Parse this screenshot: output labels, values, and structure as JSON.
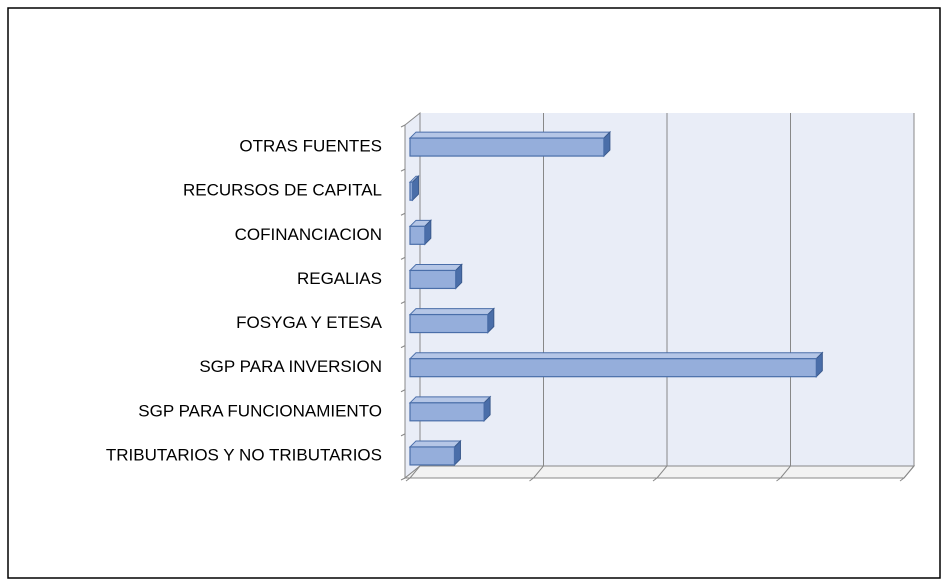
{
  "chart_data": {
    "type": "bar",
    "orientation": "horizontal",
    "three_d": true,
    "categories": [
      "OTRAS FUENTES",
      "RECURSOS DE CAPITAL",
      "COFINANCIACION",
      "REGALIAS",
      "FOSYGA Y ETESA",
      "SGP PARA INVERSION",
      "SGP PARA FUNCIONAMIENTO",
      "TRIBUTARIOS Y NO TRIBUTARIOS"
    ],
    "values": [
      1.57,
      0.02,
      0.12,
      0.37,
      0.63,
      3.29,
      0.6,
      0.36
    ],
    "color": "#95aedb",
    "xlim": [
      0,
      4
    ],
    "xticks": [
      0,
      1,
      2,
      3,
      4
    ],
    "grid": true
  }
}
